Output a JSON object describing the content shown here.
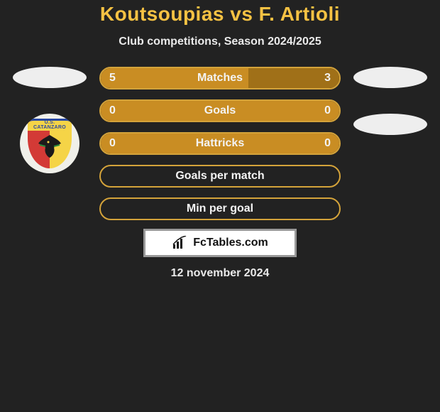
{
  "title": "Koutsoupias vs F. Artioli",
  "subtitle": "Club competitions, Season 2024/2025",
  "date": "12 november 2024",
  "badge_text": "FcTables.com",
  "crest_text": "U.S. CATANZARO",
  "colors": {
    "background": "#222222",
    "accent": "#f6c243",
    "bar_border": "#d4a33a",
    "bar_left_fill": "#c98d23",
    "bar_right_fill": "#c98d23",
    "badge_border": "#999999"
  },
  "rows": [
    {
      "label": "Matches",
      "left_value": "5",
      "right_value": "3",
      "left_pct": 62,
      "right_pct": 38,
      "left_color": "#c98d23",
      "right_color": "#a07018"
    },
    {
      "label": "Goals",
      "left_value": "0",
      "right_value": "0",
      "left_pct": 50,
      "right_pct": 50,
      "left_color": "#c98d23",
      "right_color": "#c98d23"
    },
    {
      "label": "Hattricks",
      "left_value": "0",
      "right_value": "0",
      "left_pct": 50,
      "right_pct": 50,
      "left_color": "#c98d23",
      "right_color": "#c98d23"
    },
    {
      "label": "Goals per match",
      "left_value": "",
      "right_value": "",
      "left_pct": 0,
      "right_pct": 0,
      "left_color": "#222222",
      "right_color": "#222222"
    },
    {
      "label": "Min per goal",
      "left_value": "",
      "right_value": "",
      "left_pct": 0,
      "right_pct": 0,
      "left_color": "#222222",
      "right_color": "#222222"
    }
  ]
}
